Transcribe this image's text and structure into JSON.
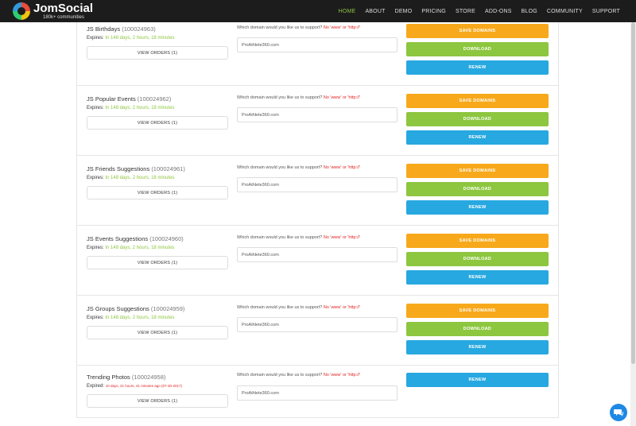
{
  "nav": {
    "logo_name": "JomSocial",
    "logo_sub": "180k+ communities",
    "items": [
      "HOME",
      "ABOUT",
      "DEMO",
      "PRICING",
      "STORE",
      "ADD-ONS",
      "BLOG",
      "COMMUNITY",
      "SUPPORT"
    ]
  },
  "products": [
    {
      "name": "JS Birthdays",
      "id": "(100024963)",
      "expires_label": "Expires:",
      "expires_value": "In 148 days, 2 hours, 18 minutes",
      "view_orders": "VIEW ORDERS (1)",
      "question": "Which domain would you like us to support?",
      "question_note": "No 'www' or 'http://'",
      "domain": "ProAthlete360.com",
      "save": "SAVE DOMAINS",
      "download": "DOWNLOAD",
      "renew": "RENEW"
    },
    {
      "name": "JS Popular Events",
      "id": "(100024962)",
      "expires_label": "Expires:",
      "expires_value": "In 148 days, 2 hours, 18 minutes",
      "view_orders": "VIEW ORDERS (1)",
      "question": "Which domain would you like us to support?",
      "question_note": "No 'www' or 'http://'",
      "domain": "ProAthlete360.com",
      "save": "SAVE DOMAINS",
      "download": "DOWNLOAD",
      "renew": "RENEW"
    },
    {
      "name": "JS Friends Suggestions",
      "id": "(100024961)",
      "expires_label": "Expires:",
      "expires_value": "In 148 days, 2 hours, 18 minutes",
      "view_orders": "VIEW ORDERS (1)",
      "question": "Which domain would you like us to support?",
      "question_note": "No 'www' or 'http://'",
      "domain": "ProAthlete360.com",
      "save": "SAVE DOMAINS",
      "download": "DOWNLOAD",
      "renew": "RENEW"
    },
    {
      "name": "JS Events Suggestions",
      "id": "(100024960)",
      "expires_label": "Expires:",
      "expires_value": "In 148 days, 2 hours, 18 minutes",
      "view_orders": "VIEW ORDERS (1)",
      "question": "Which domain would you like us to support?",
      "question_note": "No 'www' or 'http://'",
      "domain": "ProAthlete360.com",
      "save": "SAVE DOMAINS",
      "download": "DOWNLOAD",
      "renew": "RENEW"
    },
    {
      "name": "JS Groups Suggestions",
      "id": "(100024959)",
      "expires_label": "Expires:",
      "expires_value": "In 148 days, 2 hours, 18 minutes",
      "view_orders": "VIEW ORDERS (1)",
      "question": "Which domain would you like us to support?",
      "question_note": "No 'www' or 'http://'",
      "domain": "ProAthlete360.com",
      "save": "SAVE DOMAINS",
      "download": "DOWNLOAD",
      "renew": "RENEW"
    },
    {
      "name": "Trending Photos",
      "id": "(100024958)",
      "expires_label": "Expired:",
      "expired_value": "10 days, 21 hours, 41 minutes ago (07-30-2017)",
      "view_orders": "VIEW ORDERS (1)",
      "question": "Which domain would you like us to support?",
      "question_note": "No 'www' or 'http://'",
      "domain": "ProAthlete360.com",
      "renew": "RENEW"
    }
  ],
  "colors": {
    "nav_bg": "#1c1c1c",
    "active_nav": "#8dc63f",
    "save": "#f7a91b",
    "download": "#8dc63f",
    "renew": "#27a8e0",
    "expired": "#e32222"
  },
  "chat_icon": "chat-bubble-icon"
}
